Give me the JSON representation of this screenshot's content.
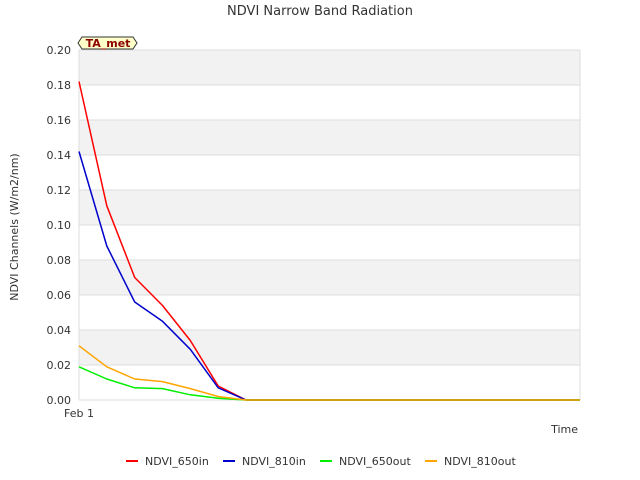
{
  "chart_data": {
    "type": "line",
    "title": "NDVI Narrow Band Radiation",
    "xlabel": "Time",
    "ylabel": "NDVI Channels (W/m2/nm)",
    "x_tick_labels": [
      "Feb 1"
    ],
    "x": [
      0,
      1,
      2,
      3,
      4,
      5,
      6,
      7,
      8,
      9,
      10,
      11,
      12,
      13,
      14,
      15,
      16,
      17,
      18
    ],
    "xlim": [
      0,
      18
    ],
    "ylim": [
      0,
      0.2
    ],
    "yticks": [
      "0.00",
      "0.02",
      "0.04",
      "0.06",
      "0.08",
      "0.10",
      "0.12",
      "0.14",
      "0.16",
      "0.18",
      "0.20"
    ],
    "annotation": "TA_met",
    "series": [
      {
        "name": "NDVI_650in",
        "color": "#ff0000",
        "values": [
          0.182,
          0.111,
          0.07,
          0.054,
          0.034,
          0.008,
          0,
          0,
          0,
          0,
          0,
          0,
          0,
          0,
          0,
          0,
          0,
          0,
          0
        ]
      },
      {
        "name": "NDVI_810in",
        "color": "#0000cc",
        "values": [
          0.142,
          0.088,
          0.056,
          0.045,
          0.029,
          0.007,
          0,
          0,
          0,
          0,
          0,
          0,
          0,
          0,
          0,
          0,
          0,
          0,
          0
        ]
      },
      {
        "name": "NDVI_650out",
        "color": "#00ee00",
        "values": [
          0.019,
          0.012,
          0.007,
          0.0065,
          0.003,
          0.001,
          0,
          0,
          0,
          0,
          0,
          0,
          0,
          0,
          0,
          0,
          0,
          0,
          0
        ]
      },
      {
        "name": "NDVI_810out",
        "color": "#ffa500",
        "values": [
          0.031,
          0.019,
          0.012,
          0.0105,
          0.0065,
          0.002,
          0,
          0,
          0,
          0,
          0,
          0,
          0,
          0,
          0,
          0,
          0,
          0,
          0
        ]
      }
    ]
  }
}
